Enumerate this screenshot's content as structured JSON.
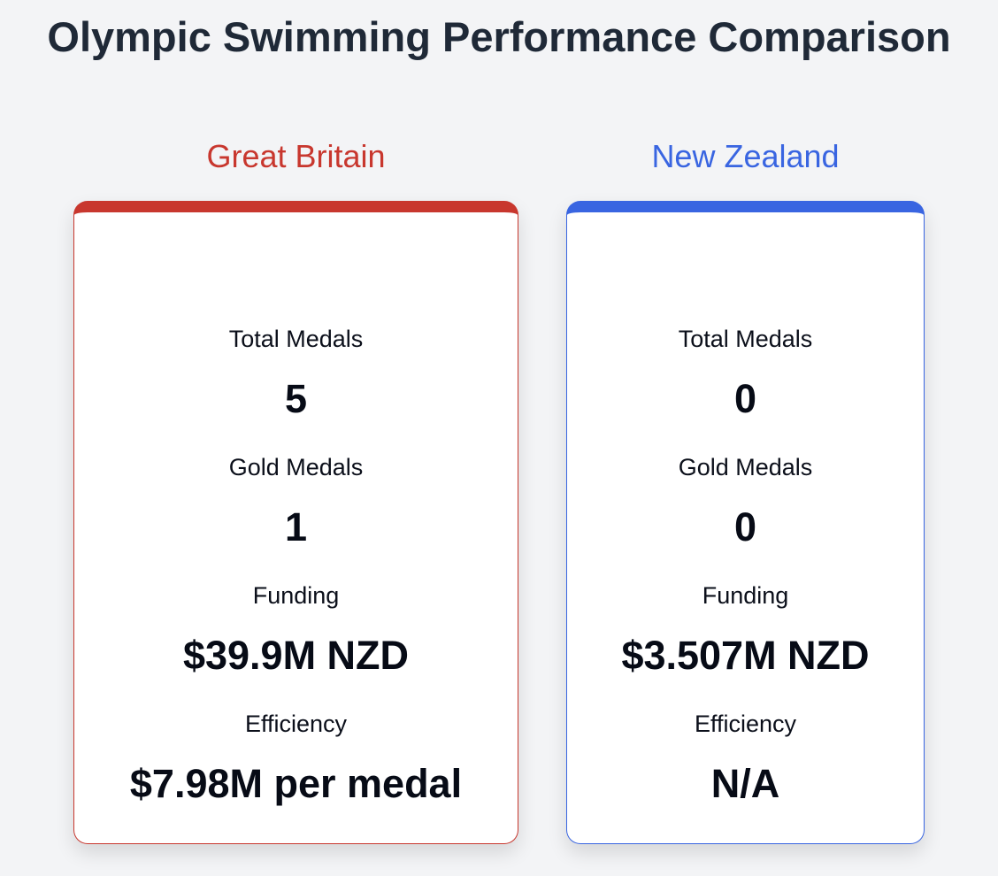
{
  "title": "Olympic Swimming Performance Comparison",
  "colors": {
    "great_britain": "#c8372e",
    "new_zealand": "#3965e1",
    "background": "#f3f4f6"
  },
  "countries": [
    {
      "name": "Great Britain",
      "stats": [
        {
          "label": "Total Medals",
          "value": "5"
        },
        {
          "label": "Gold Medals",
          "value": "1"
        },
        {
          "label": "Funding",
          "value": "$39.9M NZD"
        },
        {
          "label": "Efficiency",
          "value": "$7.98M per medal"
        }
      ]
    },
    {
      "name": "New Zealand",
      "stats": [
        {
          "label": "Total Medals",
          "value": "0"
        },
        {
          "label": "Gold Medals",
          "value": "0"
        },
        {
          "label": "Funding",
          "value": "$3.507M NZD"
        },
        {
          "label": "Efficiency",
          "value": "N/A"
        }
      ]
    }
  ]
}
